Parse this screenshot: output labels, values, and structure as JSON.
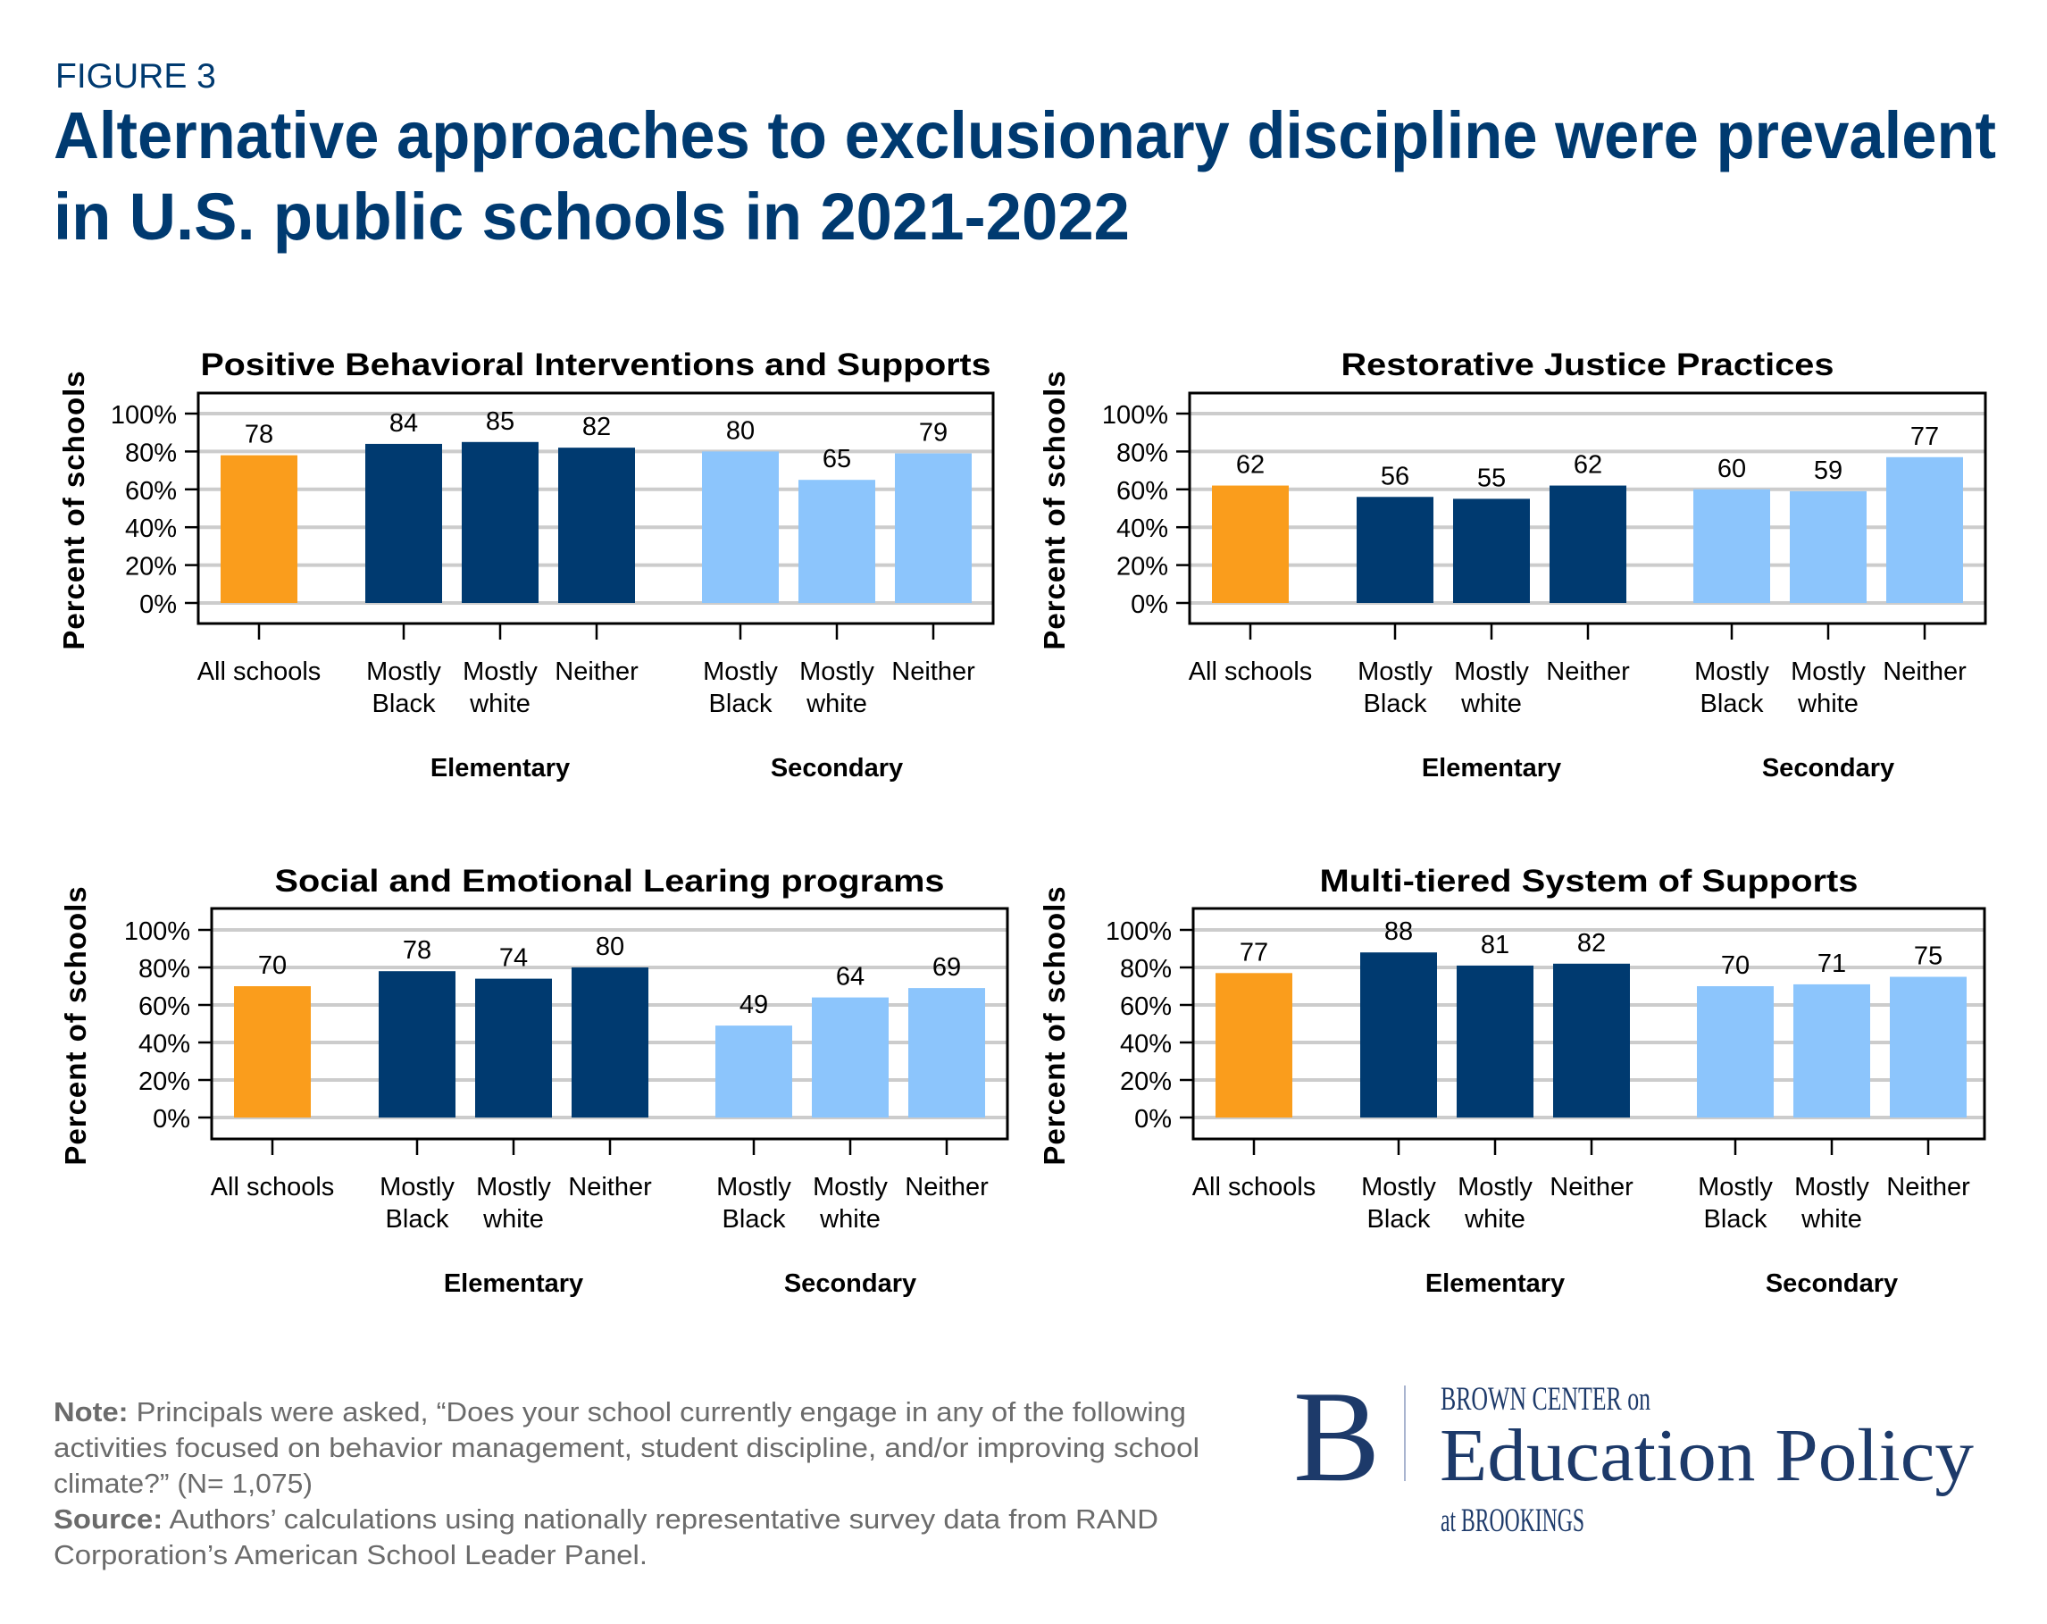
{
  "header": {
    "figure_label": "FIGURE 3",
    "title_lines": [
      "Alternative approaches to exclusionary discipline were prevalent",
      "in U.S. public schools in 2021-2022"
    ]
  },
  "colors": {
    "all_schools": "#FA9D1C",
    "elementary": "#003A70",
    "secondary": "#8CC5FC",
    "gridline": "#CCCCCC",
    "title": "#003A70"
  },
  "chart_data": [
    {
      "type": "bar",
      "title": "Positive Behavioral Interventions and Supports",
      "ylabel": "Percent of schools",
      "ylim": [
        0,
        100
      ],
      "yticks": [
        "0%",
        "20%",
        "40%",
        "60%",
        "80%",
        "100%"
      ],
      "grid": true,
      "categories": [
        "All schools",
        "Mostly Black",
        "Mostly white",
        "Neither",
        "Mostly Black",
        "Mostly white",
        "Neither"
      ],
      "category_lines": [
        [
          "All schools"
        ],
        [
          "Mostly",
          "Black"
        ],
        [
          "Mostly",
          "white"
        ],
        [
          "Neither"
        ],
        [
          "Mostly",
          "Black"
        ],
        [
          "Mostly",
          "white"
        ],
        [
          "Neither"
        ]
      ],
      "groups": [
        "All",
        "Elementary",
        "Elementary",
        "Elementary",
        "Secondary",
        "Secondary",
        "Secondary"
      ],
      "group_labels": [
        "Elementary",
        "Secondary"
      ],
      "values": [
        78,
        84,
        85,
        82,
        80,
        65,
        79
      ]
    },
    {
      "type": "bar",
      "title": "Restorative Justice Practices",
      "ylabel": "Percent of schools",
      "ylim": [
        0,
        100
      ],
      "yticks": [
        "0%",
        "20%",
        "40%",
        "60%",
        "80%",
        "100%"
      ],
      "grid": true,
      "categories": [
        "All schools",
        "Mostly Black",
        "Mostly white",
        "Neither",
        "Mostly Black",
        "Mostly white",
        "Neither"
      ],
      "category_lines": [
        [
          "All schools"
        ],
        [
          "Mostly",
          "Black"
        ],
        [
          "Mostly",
          "white"
        ],
        [
          "Neither"
        ],
        [
          "Mostly",
          "Black"
        ],
        [
          "Mostly",
          "white"
        ],
        [
          "Neither"
        ]
      ],
      "groups": [
        "All",
        "Elementary",
        "Elementary",
        "Elementary",
        "Secondary",
        "Secondary",
        "Secondary"
      ],
      "group_labels": [
        "Elementary",
        "Secondary"
      ],
      "values": [
        62,
        56,
        55,
        62,
        60,
        59,
        77
      ]
    },
    {
      "type": "bar",
      "title": "Social and Emotional Learing programs",
      "ylabel": "Percent of schools",
      "ylim": [
        0,
        100
      ],
      "yticks": [
        "0%",
        "20%",
        "40%",
        "60%",
        "80%",
        "100%"
      ],
      "grid": true,
      "categories": [
        "All schools",
        "Mostly Black",
        "Mostly white",
        "Neither",
        "Mostly Black",
        "Mostly white",
        "Neither"
      ],
      "category_lines": [
        [
          "All schools"
        ],
        [
          "Mostly",
          "Black"
        ],
        [
          "Mostly",
          "white"
        ],
        [
          "Neither"
        ],
        [
          "Mostly",
          "Black"
        ],
        [
          "Mostly",
          "white"
        ],
        [
          "Neither"
        ]
      ],
      "groups": [
        "All",
        "Elementary",
        "Elementary",
        "Elementary",
        "Secondary",
        "Secondary",
        "Secondary"
      ],
      "group_labels": [
        "Elementary",
        "Secondary"
      ],
      "values": [
        70,
        78,
        74,
        80,
        49,
        64,
        69
      ]
    },
    {
      "type": "bar",
      "title": "Multi-tiered System of Supports",
      "ylabel": "Percent of schools",
      "ylim": [
        0,
        100
      ],
      "yticks": [
        "0%",
        "20%",
        "40%",
        "60%",
        "80%",
        "100%"
      ],
      "grid": true,
      "categories": [
        "All schools",
        "Mostly Black",
        "Mostly white",
        "Neither",
        "Mostly Black",
        "Mostly white",
        "Neither"
      ],
      "category_lines": [
        [
          "All schools"
        ],
        [
          "Mostly",
          "Black"
        ],
        [
          "Mostly",
          "white"
        ],
        [
          "Neither"
        ],
        [
          "Mostly",
          "Black"
        ],
        [
          "Mostly",
          "white"
        ],
        [
          "Neither"
        ]
      ],
      "groups": [
        "All",
        "Elementary",
        "Elementary",
        "Elementary",
        "Secondary",
        "Secondary",
        "Secondary"
      ],
      "group_labels": [
        "Elementary",
        "Secondary"
      ],
      "values": [
        77,
        88,
        81,
        82,
        70,
        71,
        75
      ]
    }
  ],
  "footer": {
    "note_label": "Note:",
    "note_lines": [
      " Principals were asked, “Does your school currently engage in any of the following",
      "activities focused on behavior management, student discipline, and/or improving school",
      "climate?” (N= 1,075)"
    ],
    "source_label": "Source:",
    "source_lines": [
      " Authors’ calculations using nationally representative survey data from RAND",
      "Corporation’s American School Leader Panel."
    ]
  },
  "logo": {
    "monogram": "B",
    "line1": "BROWN CENTER on",
    "line2": "Education Policy",
    "line3": "at BROOKINGS"
  }
}
